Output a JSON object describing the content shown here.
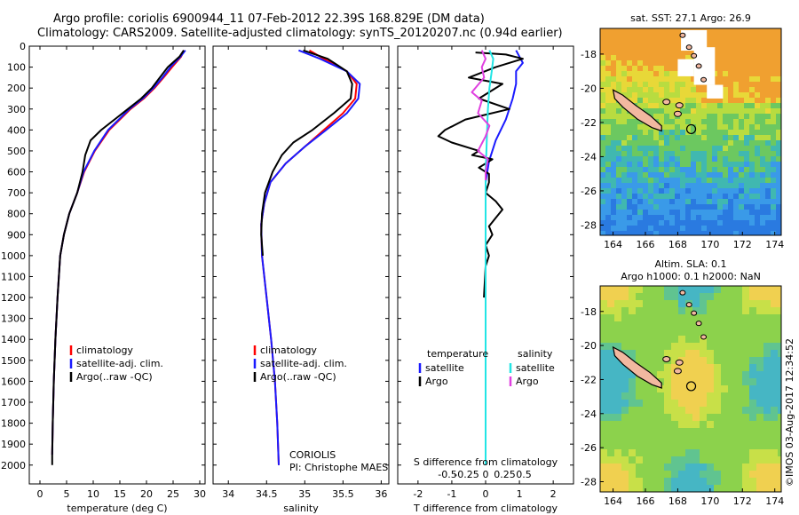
{
  "header": {
    "line1": "Argo profile: coriolis 6900944_11 07-Feb-2012 22.39S 168.829E (DM data)",
    "line2": "Climatology: CARS2009. Satellite-adjusted climatology: synTS_20120207.nc (0.94d earlier)"
  },
  "colors": {
    "climatology": "#ff0000",
    "satellite": "#1a1aff",
    "argo": "#000000",
    "sat_salinity": "#22e5e5",
    "argo_salinity": "#e040e0"
  },
  "chart_data": [
    {
      "type": "line",
      "id": "temperature",
      "xlabel": "temperature (deg C)",
      "ylabel": "",
      "xticks": [
        "0",
        "5",
        "10",
        "15",
        "20",
        "25",
        "30"
      ],
      "xlim": [
        -2,
        31
      ],
      "yticks": [
        "0",
        "100",
        "200",
        "300",
        "400",
        "500",
        "600",
        "700",
        "800",
        "900",
        "1000",
        "1100",
        "1200",
        "1300",
        "1400",
        "1500",
        "1600",
        "1700",
        "1800",
        "1900",
        "2000"
      ],
      "ylim": [
        0,
        2090
      ],
      "legend": [
        "climatology",
        "satellite-adj. clim.",
        "Argo(..raw -QC)"
      ],
      "series": [
        {
          "name": "climatology",
          "points": [
            [
              27.0,
              20
            ],
            [
              26.5,
              50
            ],
            [
              24.8,
              100
            ],
            [
              23.2,
              150
            ],
            [
              21.5,
              200
            ],
            [
              19.5,
              250
            ],
            [
              17.0,
              300
            ],
            [
              15.0,
              350
            ],
            [
              13.0,
              400
            ],
            [
              10.3,
              500
            ],
            [
              8.3,
              600
            ],
            [
              7.0,
              700
            ],
            [
              5.5,
              800
            ],
            [
              4.5,
              900
            ],
            [
              3.8,
              1000
            ],
            [
              3.3,
              1200
            ],
            [
              2.9,
              1400
            ],
            [
              2.6,
              1600
            ],
            [
              2.4,
              1800
            ],
            [
              2.3,
              1950
            ]
          ]
        },
        {
          "name": "satellite-adj. clim.",
          "points": [
            [
              27.3,
              20
            ],
            [
              26.4,
              50
            ],
            [
              24.5,
              100
            ],
            [
              23.0,
              150
            ],
            [
              21.3,
              200
            ],
            [
              19.3,
              250
            ],
            [
              16.8,
              300
            ],
            [
              14.8,
              350
            ],
            [
              12.8,
              400
            ],
            [
              10.2,
              500
            ],
            [
              8.2,
              600
            ],
            [
              7.0,
              700
            ],
            [
              5.5,
              800
            ],
            [
              4.5,
              900
            ],
            [
              3.8,
              1000
            ],
            [
              3.3,
              1200
            ],
            [
              2.9,
              1400
            ],
            [
              2.6,
              1600
            ],
            [
              2.4,
              1800
            ],
            [
              2.3,
              1950
            ]
          ]
        },
        {
          "name": "Argo(..raw -QC)",
          "points": [
            [
              27.0,
              20
            ],
            [
              26.2,
              50
            ],
            [
              24.0,
              100
            ],
            [
              22.5,
              150
            ],
            [
              21.0,
              200
            ],
            [
              19.0,
              250
            ],
            [
              16.5,
              300
            ],
            [
              14.0,
              350
            ],
            [
              11.5,
              400
            ],
            [
              9.5,
              450
            ],
            [
              8.5,
              520
            ],
            [
              8.0,
              600
            ],
            [
              7.0,
              700
            ],
            [
              5.5,
              800
            ],
            [
              4.5,
              900
            ],
            [
              3.8,
              1000
            ],
            [
              3.3,
              1200
            ],
            [
              2.9,
              1400
            ],
            [
              2.6,
              1600
            ],
            [
              2.4,
              1800
            ],
            [
              2.3,
              1950
            ],
            [
              2.3,
              2000
            ]
          ]
        }
      ]
    },
    {
      "type": "line",
      "id": "salinity",
      "xlabel": "salinity",
      "xticks": [
        "34",
        "34.5",
        "35",
        "35.5",
        "36"
      ],
      "xlim": [
        33.8,
        36.1
      ],
      "ylim": [
        0,
        2090
      ],
      "legend": [
        "climatology",
        "satellite-adj. clim.",
        "Argo(..raw -QC)"
      ],
      "annotation": [
        "CORIOLIS",
        "PI: Christophe MAES"
      ],
      "series": [
        {
          "name": "climatology",
          "points": [
            [
              35.06,
              20
            ],
            [
              35.25,
              60
            ],
            [
              35.55,
              120
            ],
            [
              35.68,
              180
            ],
            [
              35.66,
              250
            ],
            [
              35.5,
              320
            ],
            [
              35.25,
              400
            ],
            [
              35.0,
              480
            ],
            [
              34.75,
              560
            ],
            [
              34.55,
              650
            ],
            [
              34.47,
              750
            ],
            [
              34.43,
              850
            ],
            [
              34.44,
              1000
            ],
            [
              34.5,
              1200
            ],
            [
              34.56,
              1400
            ],
            [
              34.61,
              1600
            ],
            [
              34.64,
              1800
            ],
            [
              34.66,
              2000
            ]
          ]
        },
        {
          "name": "satellite-adj. clim.",
          "points": [
            [
              34.92,
              20
            ],
            [
              35.2,
              60
            ],
            [
              35.55,
              120
            ],
            [
              35.72,
              180
            ],
            [
              35.7,
              250
            ],
            [
              35.55,
              320
            ],
            [
              35.28,
              400
            ],
            [
              35.0,
              480
            ],
            [
              34.75,
              560
            ],
            [
              34.55,
              650
            ],
            [
              34.47,
              750
            ],
            [
              34.43,
              850
            ],
            [
              34.44,
              1000
            ],
            [
              34.5,
              1200
            ],
            [
              34.56,
              1400
            ],
            [
              34.61,
              1600
            ],
            [
              34.64,
              1800
            ],
            [
              34.66,
              2000
            ]
          ]
        },
        {
          "name": "Argo(..raw -QC)",
          "points": [
            [
              34.98,
              20
            ],
            [
              35.3,
              60
            ],
            [
              35.55,
              120
            ],
            [
              35.62,
              180
            ],
            [
              35.6,
              250
            ],
            [
              35.38,
              320
            ],
            [
              35.1,
              400
            ],
            [
              34.85,
              460
            ],
            [
              34.7,
              520
            ],
            [
              34.58,
              600
            ],
            [
              34.48,
              700
            ],
            [
              34.44,
              800
            ],
            [
              34.43,
              900
            ],
            [
              34.45,
              1000
            ]
          ]
        }
      ]
    },
    {
      "type": "line",
      "id": "difference",
      "xlabel_top": "S difference from climatology",
      "xticks_top": [
        "-0.5",
        "-0.25",
        "0",
        "0.25",
        "0.5"
      ],
      "xlabel": "T difference from climatology",
      "xticks": [
        "-2",
        "-1",
        "0",
        "1",
        "2"
      ],
      "xlim": [
        -2.6,
        2.6
      ],
      "ylim": [
        0,
        2090
      ],
      "legend": {
        "temperature": [
          "satellite",
          "Argo"
        ],
        "salinity": [
          "satellite",
          "Argo"
        ],
        "title_t": "temperature",
        "title_s": "salinity"
      },
      "series": [
        {
          "name": "T satellite",
          "points": [
            [
              0.9,
              20
            ],
            [
              1.0,
              50
            ],
            [
              1.1,
              80
            ],
            [
              0.9,
              120
            ],
            [
              0.9,
              180
            ],
            [
              0.8,
              250
            ],
            [
              0.6,
              350
            ],
            [
              0.3,
              450
            ],
            [
              0.1,
              550
            ],
            [
              0.0,
              650
            ],
            [
              0.0,
              2000
            ]
          ]
        },
        {
          "name": "T Argo",
          "points": [
            [
              -0.3,
              30
            ],
            [
              0.6,
              40
            ],
            [
              1.1,
              60
            ],
            [
              0.3,
              100
            ],
            [
              -0.5,
              150
            ],
            [
              0.5,
              180
            ],
            [
              -0.2,
              250
            ],
            [
              0.7,
              300
            ],
            [
              -0.6,
              350
            ],
            [
              -1.2,
              400
            ],
            [
              -1.4,
              430
            ],
            [
              -1.0,
              460
            ],
            [
              -0.2,
              500
            ],
            [
              -0.4,
              520
            ],
            [
              0.2,
              540
            ],
            [
              0.0,
              560
            ],
            [
              -0.2,
              580
            ],
            [
              0.1,
              610
            ],
            [
              0.1,
              650
            ],
            [
              0.0,
              700
            ],
            [
              0.3,
              740
            ],
            [
              0.5,
              780
            ],
            [
              0.3,
              820
            ],
            [
              0.1,
              860
            ],
            [
              0.2,
              900
            ],
            [
              0.0,
              950
            ],
            [
              0.1,
              1000
            ],
            [
              0.0,
              1050
            ],
            [
              -0.05,
              1200
            ]
          ]
        },
        {
          "name": "S satellite",
          "points": [
            [
              0.05,
              20
            ],
            [
              0.1,
              60
            ],
            [
              0.08,
              120
            ],
            [
              0.05,
              200
            ],
            [
              0.03,
              300
            ],
            [
              0.02,
              400
            ],
            [
              0.01,
              500
            ],
            [
              0.0,
              600
            ],
            [
              0.0,
              2000
            ]
          ]
        },
        {
          "name": "S Argo",
          "points": [
            [
              -0.05,
              20
            ],
            [
              0.0,
              60
            ],
            [
              -0.05,
              100
            ],
            [
              -0.02,
              150
            ],
            [
              -0.18,
              220
            ],
            [
              -0.05,
              260
            ],
            [
              -0.1,
              320
            ],
            [
              0.05,
              380
            ],
            [
              0.0,
              430
            ],
            [
              -0.1,
              500
            ],
            [
              0.03,
              540
            ],
            [
              0.0,
              600
            ],
            [
              0.0,
              640
            ]
          ]
        }
      ]
    }
  ],
  "maps": [
    {
      "id": "sst_map",
      "title": "sat. SST: 27.1  Argo: 26.9",
      "xticks": [
        "164",
        "166",
        "168",
        "170",
        "172",
        "174"
      ],
      "yticks": [
        "-18",
        "-20",
        "-22",
        "-24",
        "-26",
        "-28"
      ]
    },
    {
      "id": "sla_map",
      "title_line1": "Altim. SLA: 0.1",
      "title_line2": "Argo h1000: 0.1 h2000: NaN",
      "xticks": [
        "164",
        "166",
        "168",
        "170",
        "172",
        "174"
      ],
      "yticks": [
        "-18",
        "-20",
        "-22",
        "-24",
        "-26",
        "-28"
      ]
    }
  ],
  "credit": "©IMOS 03-Aug-2017 12:34:52"
}
